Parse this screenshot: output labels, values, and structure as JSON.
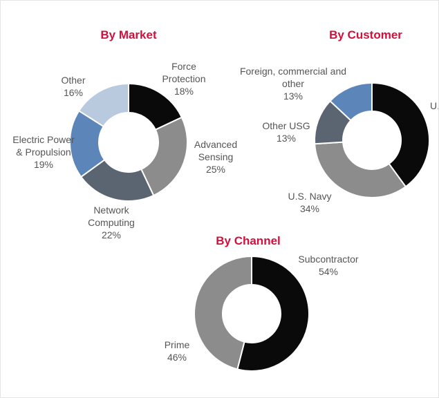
{
  "chart_data": [
    {
      "type": "pie",
      "title": "By Market",
      "categories": [
        "Force Protection",
        "Advanced Sensing",
        "Network Computing",
        "Electric Power & Propulsion",
        "Other"
      ],
      "values": [
        18,
        25,
        22,
        19,
        16
      ],
      "value_labels": [
        "18%",
        "25%",
        "22%",
        "19%",
        "16%"
      ],
      "colors": [
        "#0a0a0a",
        "#8c8c8c",
        "#5b6571",
        "#5c86b9",
        "#b9cadf"
      ]
    },
    {
      "type": "pie",
      "title": "By Customer",
      "categories": [
        "U.",
        "U.S. Navy",
        "Other USG",
        "Foreign, commercial and other"
      ],
      "values": [
        40,
        34,
        13,
        13
      ],
      "value_labels": [
        null,
        "34%",
        "13%",
        "13%"
      ],
      "colors": [
        "#0a0a0a",
        "#8c8c8c",
        "#5b6571",
        "#5c86b9"
      ]
    },
    {
      "type": "pie",
      "title": "By Channel",
      "categories": [
        "Subcontractor",
        "Prime"
      ],
      "values": [
        54,
        46
      ],
      "value_labels": [
        "54%",
        "46%"
      ],
      "colors": [
        "#0a0a0a",
        "#8c8c8c"
      ]
    }
  ]
}
